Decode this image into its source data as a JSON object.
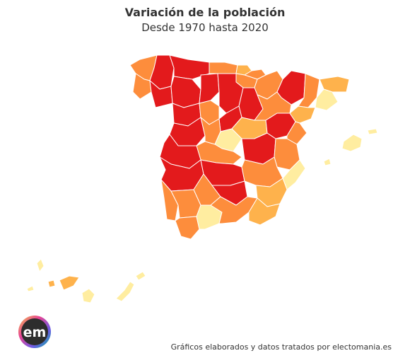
{
  "header": {
    "title": "Variación de la población",
    "subtitle": "Desde 1970 hasta 2020"
  },
  "footer": {
    "credit": "Gráficos elaborados y datos tratados por electomania.es"
  },
  "logo": {
    "text": "em"
  },
  "colors": {
    "strong_red": "#e31a1c",
    "orange": "#fd8d3c",
    "light_orange": "#feb24c",
    "pale_yellow": "#ffeda0",
    "border": "#ffffff"
  },
  "icons": {
    "logo": "electomania-em-logo"
  }
}
